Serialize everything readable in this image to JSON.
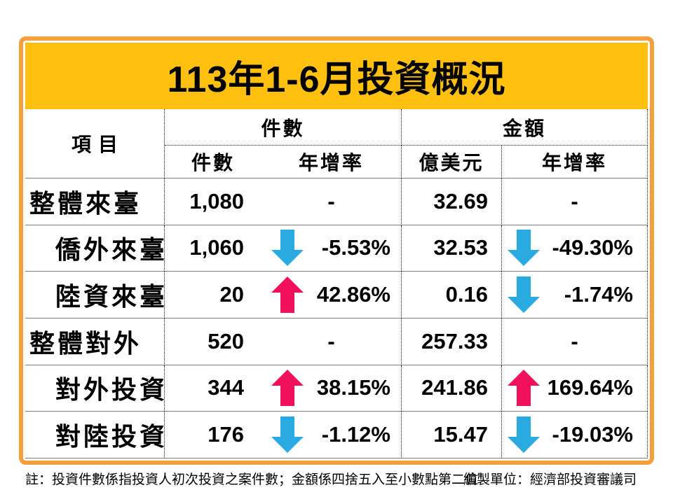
{
  "chart_data": {
    "type": "table",
    "title": "113年1-6月投資概況",
    "row_header": "項目",
    "column_groups": [
      {
        "label": "件數",
        "columns": [
          "件數",
          "年增率"
        ]
      },
      {
        "label": "金額",
        "columns": [
          "億美元",
          "年增率"
        ]
      }
    ],
    "rows": [
      {
        "label": "整體來臺",
        "indent": false,
        "count": "1,080",
        "count_rate": "-",
        "count_trend": "none",
        "amount": "32.69",
        "amount_rate": "-",
        "amount_trend": "none"
      },
      {
        "label": "僑外來臺",
        "indent": true,
        "count": "1,060",
        "count_rate": "-5.53%",
        "count_trend": "down",
        "amount": "32.53",
        "amount_rate": "-49.30%",
        "amount_trend": "down"
      },
      {
        "label": "陸資來臺",
        "indent": true,
        "count": "20",
        "count_rate": "42.86%",
        "count_trend": "up",
        "amount": "0.16",
        "amount_rate": "-1.74%",
        "amount_trend": "down"
      },
      {
        "label": "整體對外",
        "indent": false,
        "count": "520",
        "count_rate": "-",
        "count_trend": "none",
        "amount": "257.33",
        "amount_rate": "-",
        "amount_trend": "none"
      },
      {
        "label": "對外投資",
        "indent": true,
        "count": "344",
        "count_rate": "38.15%",
        "count_trend": "up",
        "amount": "241.86",
        "amount_rate": "169.64%",
        "amount_trend": "up"
      },
      {
        "label": "對陸投資",
        "indent": true,
        "count": "176",
        "count_rate": "-1.12%",
        "count_trend": "down",
        "amount": "15.47",
        "amount_rate": "-19.03%",
        "amount_trend": "down"
      }
    ]
  },
  "footer": {
    "note": "註：投資件數係指投資人初次投資之案件數；金額係四捨五入至小數點第二位",
    "source": "編製單位：經濟部投資審議司"
  },
  "colors": {
    "frame_orange": "#F4A03C",
    "title_bg": "#FFC010",
    "up_arrow_pink": "#F0105C",
    "down_arrow_blue": "#29ABE2",
    "grid_line_gray": "#7F7F7F"
  }
}
